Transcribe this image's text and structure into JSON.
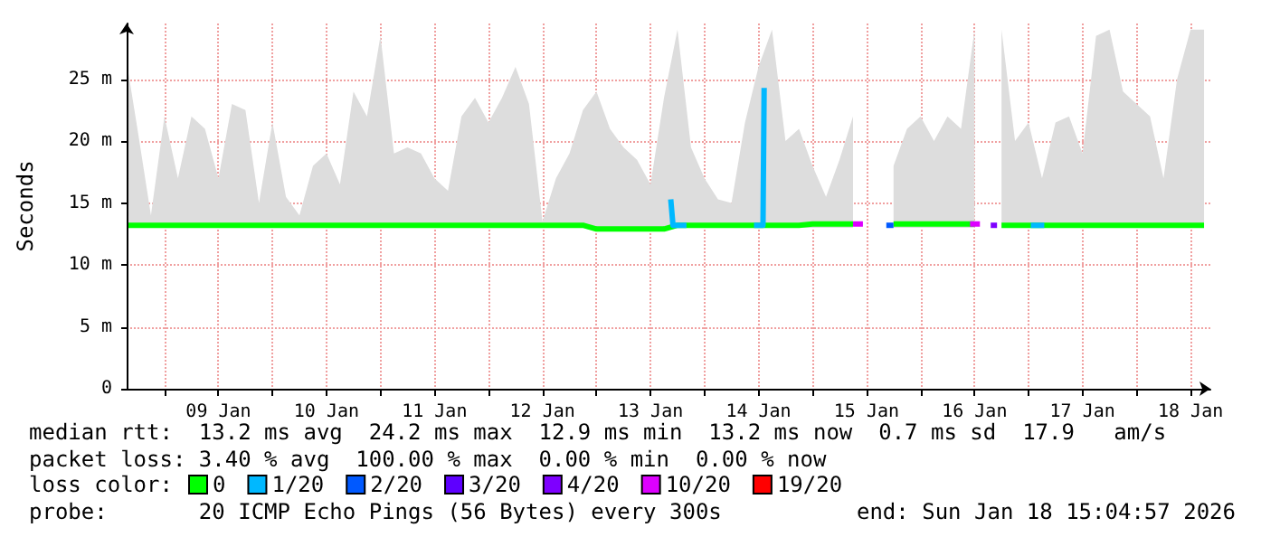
{
  "chart_data": {
    "type": "line",
    "ylabel": "Seconds",
    "legend_title": "loss color:",
    "legend": "bottom",
    "grid": true,
    "marker": "none",
    "line_style": "solid",
    "xlim": [
      "2026-01-08T15:36",
      "2026-01-18T16:24"
    ],
    "xticks": [
      {
        "value": "2026-01-09T00:00",
        "label": null
      },
      {
        "value": "2026-01-09T12:00",
        "label": "09 Jan"
      },
      {
        "value": "2026-01-10T00:00",
        "label": null
      },
      {
        "value": "2026-01-10T12:00",
        "label": "10 Jan"
      },
      {
        "value": "2026-01-11T00:00",
        "label": null
      },
      {
        "value": "2026-01-11T12:00",
        "label": "11 Jan"
      },
      {
        "value": "2026-01-12T00:00",
        "label": null
      },
      {
        "value": "2026-01-12T12:00",
        "label": "12 Jan"
      },
      {
        "value": "2026-01-13T00:00",
        "label": null
      },
      {
        "value": "2026-01-13T12:00",
        "label": "13 Jan"
      },
      {
        "value": "2026-01-14T00:00",
        "label": null
      },
      {
        "value": "2026-01-14T12:00",
        "label": "14 Jan"
      },
      {
        "value": "2026-01-15T00:00",
        "label": null
      },
      {
        "value": "2026-01-15T12:00",
        "label": "15 Jan"
      },
      {
        "value": "2026-01-16T00:00",
        "label": null
      },
      {
        "value": "2026-01-16T12:00",
        "label": "16 Jan"
      },
      {
        "value": "2026-01-17T00:00",
        "label": null
      },
      {
        "value": "2026-01-17T12:00",
        "label": "17 Jan"
      },
      {
        "value": "2026-01-18T00:00",
        "label": null
      },
      {
        "value": "2026-01-18T12:00",
        "label": "18 Jan"
      }
    ],
    "ylim": [
      0,
      29.5
    ],
    "yticks": [
      0,
      {
        "value": 5,
        "label": "5 m"
      },
      {
        "value": 10,
        "label": "10 m"
      },
      {
        "value": 15,
        "label": "15 m"
      },
      {
        "value": 20,
        "label": "20 m"
      },
      {
        "value": 25,
        "label": "25 m"
      }
    ],
    "x": [
      "2026-01-08T16:00",
      "2026-01-08T18:00",
      "2026-01-08T21:00",
      "2026-01-09T00:00",
      "2026-01-09T03:00",
      "2026-01-09T06:00",
      "2026-01-09T09:00",
      "2026-01-09T12:00",
      "2026-01-09T15:00",
      "2026-01-09T18:00",
      "2026-01-09T21:00",
      "2026-01-10T00:00",
      "2026-01-10T03:00",
      "2026-01-10T06:00",
      "2026-01-10T09:00",
      "2026-01-10T12:00",
      "2026-01-10T15:00",
      "2026-01-10T18:00",
      "2026-01-10T21:00",
      "2026-01-11T00:00",
      "2026-01-11T03:00",
      "2026-01-11T06:00",
      "2026-01-11T09:00",
      "2026-01-11T12:00",
      "2026-01-11T15:00",
      "2026-01-11T18:00",
      "2026-01-11T21:00",
      "2026-01-12T00:00",
      "2026-01-12T03:00",
      "2026-01-12T06:00",
      "2026-01-12T09:00",
      "2026-01-12T12:00",
      "2026-01-12T15:00",
      "2026-01-12T18:00",
      "2026-01-12T21:00",
      "2026-01-13T00:00",
      "2026-01-13T03:00",
      "2026-01-13T06:00",
      "2026-01-13T09:00",
      "2026-01-13T12:00",
      "2026-01-13T15:00",
      "2026-01-13T18:00",
      "2026-01-13T21:00",
      "2026-01-14T00:00",
      "2026-01-14T03:00",
      "2026-01-14T06:00",
      "2026-01-14T09:00",
      "2026-01-14T12:00",
      "2026-01-14T15:00",
      "2026-01-14T18:00",
      "2026-01-14T21:00",
      "2026-01-15T00:00",
      "2026-01-15T03:00",
      "2026-01-15T06:00",
      "2026-01-15T09:00",
      "2026-01-15T12:00",
      "2026-01-15T15:00",
      "2026-01-15T18:00",
      "2026-01-15T21:00",
      "2026-01-16T00:00",
      "2026-01-16T03:00",
      "2026-01-16T06:00",
      "2026-01-16T09:00",
      "2026-01-16T12:00",
      "2026-01-16T15:00",
      "2026-01-16T18:00",
      "2026-01-16T21:00",
      "2026-01-17T00:00",
      "2026-01-17T03:00",
      "2026-01-17T06:00",
      "2026-01-17T09:00",
      "2026-01-17T12:00",
      "2026-01-17T15:00",
      "2026-01-17T18:00",
      "2026-01-17T21:00",
      "2026-01-18T00:00",
      "2026-01-18T03:00",
      "2026-01-18T06:00",
      "2026-01-18T09:00",
      "2026-01-18T12:00",
      "2026-01-18T15:00"
    ],
    "series": [
      {
        "name": "0",
        "color": "#00ff00",
        "values": [
          13.2,
          13.2,
          13.2,
          13.2,
          13.2,
          13.2,
          13.2,
          13.2,
          13.2,
          13.2,
          13.2,
          13.2,
          13.2,
          13.2,
          13.2,
          13.2,
          13.2,
          13.2,
          13.2,
          13.2,
          13.2,
          13.2,
          13.2,
          13.2,
          13.2,
          13.2,
          13.2,
          13.2,
          13.2,
          13.2,
          13.2,
          13.2,
          13.2,
          13.2,
          13.2,
          12.9,
          12.9,
          12.9,
          12.9,
          12.9,
          12.9,
          13.2,
          13.2,
          13.2,
          13.2,
          13.2,
          13.2,
          13.2,
          13.2,
          13.2,
          13.2,
          13.3,
          13.3,
          13.3,
          13.3,
          null,
          null,
          13.3,
          13.3,
          13.3,
          13.3,
          13.3,
          13.3,
          13.3,
          null,
          13.2,
          13.2,
          13.2,
          13.2,
          13.2,
          13.2,
          13.2,
          13.2,
          13.2,
          13.2,
          13.2,
          13.2,
          13.2,
          13.2,
          13.2,
          13.2
        ],
        "lower": [
          13,
          13,
          13,
          13,
          13,
          13,
          13,
          13,
          13,
          13,
          13,
          13,
          13,
          13,
          13,
          13,
          13,
          13,
          13,
          13,
          13,
          13,
          13,
          13,
          13,
          13,
          13,
          13,
          13,
          13,
          13,
          13,
          13,
          13,
          13,
          12.7,
          12.7,
          12.7,
          12.7,
          12.7,
          12.7,
          13,
          13,
          13,
          13,
          13,
          13,
          13,
          13,
          13,
          13,
          13,
          13,
          13,
          13,
          null,
          null,
          13,
          13,
          13,
          13,
          13,
          13,
          13,
          null,
          13,
          13,
          13,
          13,
          13,
          13,
          13,
          13,
          13,
          13,
          13,
          13,
          13,
          13,
          13,
          13
        ],
        "upper": [
          25.5,
          21,
          14,
          22,
          17,
          22,
          21,
          17,
          23,
          22.5,
          15,
          21.5,
          15.5,
          14,
          18,
          19,
          16.5,
          24,
          22,
          28.5,
          19,
          19.5,
          19,
          17,
          16,
          22,
          23.5,
          21.5,
          23.5,
          26,
          23,
          13.5,
          17,
          19,
          22.5,
          24,
          21,
          19.5,
          18.5,
          16.5,
          23.5,
          29,
          19.5,
          17,
          15.3,
          15,
          21.5,
          26,
          29,
          20,
          21,
          18,
          15.5,
          18.5,
          22,
          null,
          null,
          18,
          21,
          22,
          20,
          22,
          21,
          29,
          null,
          29,
          20,
          21.5,
          17,
          21.5,
          22,
          19,
          28.5,
          29,
          24,
          23,
          22,
          17,
          25,
          29,
          29
        ]
      },
      {
        "name": "1/20",
        "color": "#00b8ff",
        "x": [
          "2026-01-13T16:30",
          "2026-01-13T17:00",
          "2026-01-13T20:00",
          "2026-01-13T21:00",
          "2026-01-14T11:00",
          "2026-01-14T13:00",
          "2026-01-14T13:15",
          "2026-01-14T14:00",
          "2026-01-17T00:30",
          "2026-01-17T03:30"
        ],
        "values": [
          15.3,
          13.2,
          13.2,
          null,
          13.2,
          13.2,
          24.3,
          null,
          13.2,
          13.2
        ]
      },
      {
        "name": "2/20",
        "color": "#0059ff",
        "x": [
          "2026-01-15T16:24",
          "2026-01-15T18:00"
        ],
        "values": [
          13.2,
          13.2
        ]
      },
      {
        "name": "3/20",
        "color": "#5e00ff",
        "values": [
          null,
          null,
          null,
          null,
          null,
          null,
          null,
          null,
          null,
          null,
          null,
          null,
          null,
          null,
          null,
          null,
          null,
          null,
          null,
          null,
          null,
          null,
          null,
          null,
          null,
          null,
          null,
          null,
          null,
          null,
          null,
          null,
          null,
          null,
          null,
          null,
          null,
          null,
          null,
          null,
          null,
          null,
          null,
          null,
          null,
          null,
          null,
          null,
          null,
          null,
          null,
          null,
          null,
          null,
          null,
          null,
          null,
          null,
          null,
          null,
          null,
          null,
          null,
          null,
          null,
          null,
          null,
          null,
          null,
          null,
          null,
          null,
          null,
          null,
          null,
          null,
          null,
          null,
          null,
          null,
          null
        ]
      },
      {
        "name": "4/20",
        "color": "#7e00ff",
        "x": [
          "2026-01-16T15:36",
          "2026-01-16T17:00"
        ],
        "values": [
          13.2,
          13.2
        ]
      },
      {
        "name": "10/20",
        "color": "#dd00ff",
        "x": [
          "2026-01-15T09:00",
          "2026-01-15T11:12",
          "2026-01-15T12:00",
          "2026-01-16T11:00",
          "2026-01-16T13:12"
        ],
        "values": [
          13.3,
          13.3,
          null,
          13.3,
          13.3
        ]
      },
      {
        "name": "19/20",
        "color": "#ff0000",
        "values": [
          null,
          null,
          null,
          null,
          null,
          null,
          null,
          null,
          null,
          null,
          null,
          null,
          null,
          null,
          null,
          null,
          null,
          null,
          null,
          null,
          null,
          null,
          null,
          null,
          null,
          null,
          null,
          null,
          null,
          null,
          null,
          null,
          null,
          null,
          null,
          null,
          null,
          null,
          null,
          null,
          null,
          null,
          null,
          null,
          null,
          null,
          null,
          null,
          null,
          null,
          null,
          null,
          null,
          null,
          null,
          null,
          null,
          null,
          null,
          null,
          null,
          null,
          null,
          null,
          null,
          null,
          null,
          null,
          null,
          null,
          null,
          null,
          null,
          null,
          null,
          null,
          null,
          null,
          null,
          null,
          null
        ]
      }
    ],
    "annotations": [
      "median rtt:  13.2 ms avg  24.2 ms max  12.9 ms min  13.2 ms now  0.7 ms sd  17.9   am/s",
      "packet loss: 3.40 % avg  100.00 % max  0.00 % min  0.00 % now",
      "probe:       20 ICMP Echo Pings (56 Bytes) every 300s",
      "end: Sun Jan 18 15:04:57 2026"
    ]
  }
}
